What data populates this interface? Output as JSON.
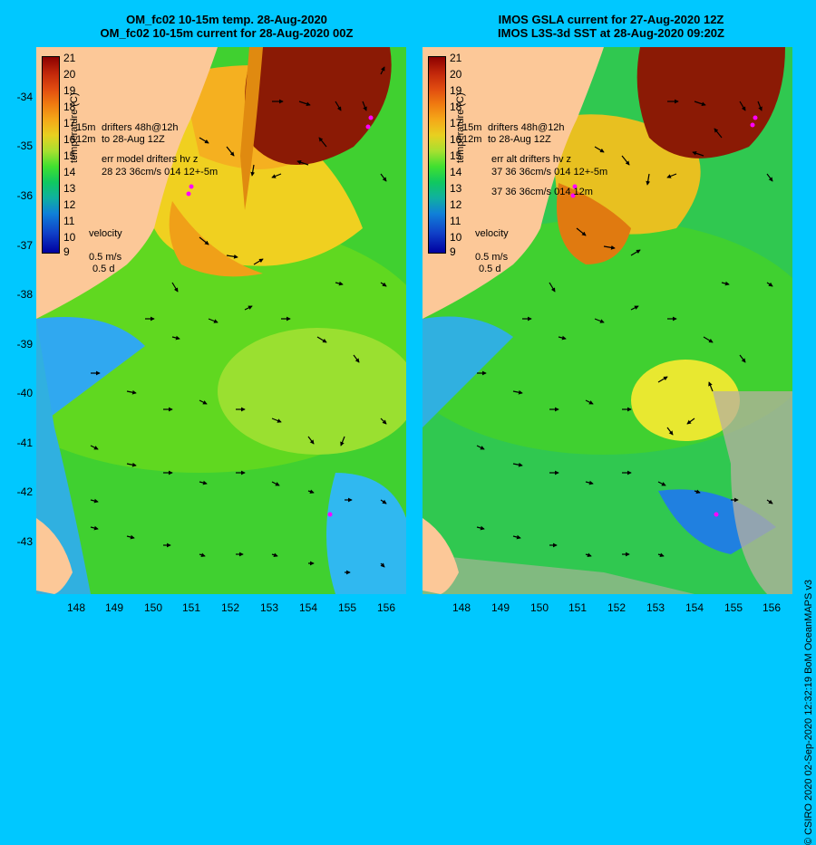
{
  "left": {
    "title_line1": "OM_fc02 10-15m temp. 28-Aug-2020",
    "title_line2": "OM_fc02 10-15m current for 28-Aug-2020 00Z",
    "err_line1": "err model drifters hv z",
    "err_line2": "28 23 36cm/s 014 12+-5m",
    "err_line3": ""
  },
  "right": {
    "title_line1": "IMOS GSLA current for 27-Aug-2020 12Z",
    "title_line2": "IMOS L3S-3d SST at 28-Aug-2020 09:20Z",
    "err_line1": "err alt drifters hv z",
    "err_line2": "37 36 36cm/s 014 12+-5m",
    "err_line3": "37 36 36cm/s 014 12m"
  },
  "legend": {
    "ticks": [
      "21",
      "20",
      "19",
      "18",
      "17",
      "16",
      "15",
      "14",
      "13",
      "12",
      "11",
      "10",
      "9"
    ],
    "unit": "temperature (C)",
    "drifters_line1": "drifters 48h@12h",
    "drifters_line2": "to 28-Aug 12Z",
    "label_15m": "15m",
    "label_12m": "12m",
    "velocity_label": "velocity",
    "velocity_speed": "0.5 m/s",
    "velocity_time": "0.5 d"
  },
  "latitudes": [
    "-34",
    "-35",
    "-36",
    "-37",
    "-38",
    "-39",
    "-40",
    "-41",
    "-42",
    "-43"
  ],
  "longitudes": [
    "148",
    "149",
    "150",
    "151",
    "152",
    "153",
    "154",
    "155",
    "156"
  ],
  "credit": "© CSIRO 2020  02-Sep-2020 12:32:19 BoM OceanMAPS v3",
  "colors": {
    "background": "#00c8ff",
    "land": "#fcc898",
    "drifter": "#ff00ff"
  }
}
